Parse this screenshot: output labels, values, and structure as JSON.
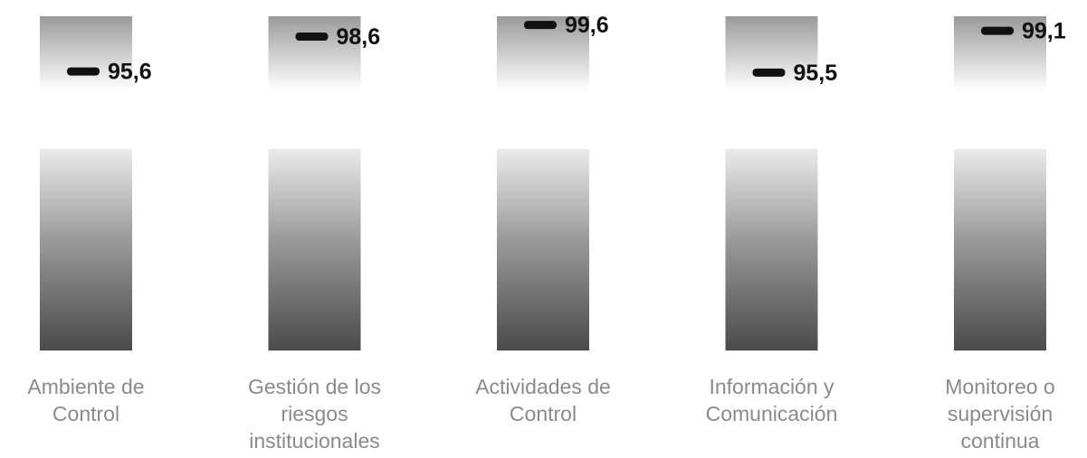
{
  "chart_data": {
    "type": "bar",
    "title": "",
    "xlabel": "",
    "ylabel": "",
    "categories": [
      [
        "Ambiente de",
        "Control"
      ],
      [
        "Gestión de los",
        "riesgos",
        "institucionales"
      ],
      [
        "Actividades de",
        "Control"
      ],
      [
        "Información y",
        "Comunicación"
      ],
      [
        "Monitoreo o",
        "supervisión",
        "continua"
      ]
    ],
    "values": [
      95.6,
      98.6,
      99.6,
      95.5,
      99.1
    ],
    "value_labels": [
      "95,6",
      "98,6",
      "99,6",
      "95,5",
      "99,1"
    ],
    "ylim": [
      93,
      100
    ],
    "grid": false,
    "legend": "none",
    "colors": {
      "bar_top": "#ebebeb",
      "bar_mid": "#9a9a9a",
      "bar_bottom": "#4a4a4a",
      "marker": "#111111",
      "category_text": "#8a8a8a",
      "value_text": "#111111"
    }
  }
}
